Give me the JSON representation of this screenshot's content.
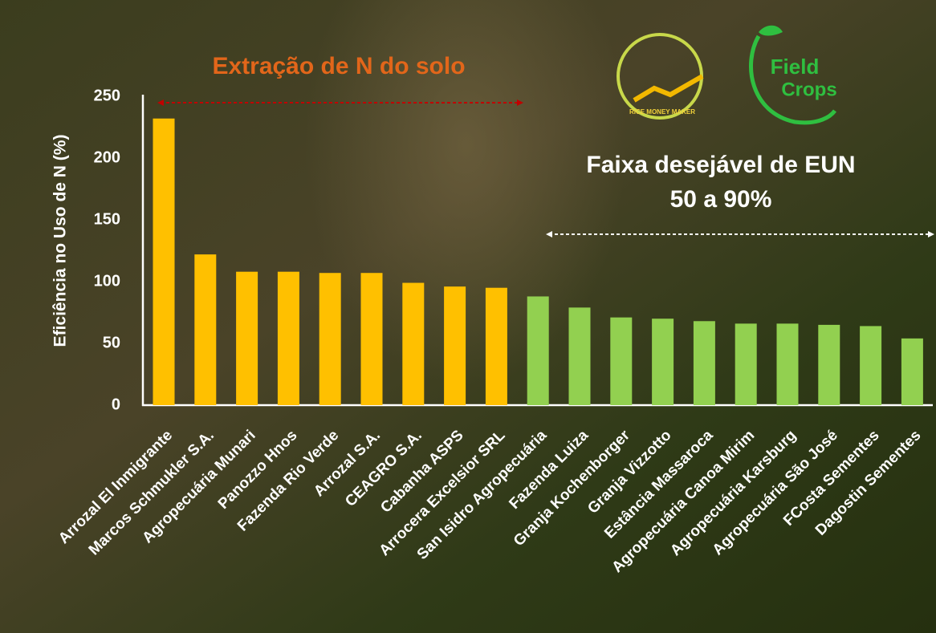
{
  "chart_data": {
    "type": "bar",
    "y_label": "Eficiência no Uso de N (%)",
    "annotations": [
      "Extração de N do solo",
      "Faixa desejável de EUN",
      "50 a 90%"
    ],
    "categories": [
      "Arrozal El Inmigrante",
      "Marcos Schmukler S.A.",
      "Agropecuária Munari",
      "Panozzo Hnos",
      "Fazenda Rio Verde",
      "Arrozal S.A.",
      "CEAGRO S.A.",
      "Cabanha ASPS",
      "Arrocera Excelsior SRL",
      "San Isidro Agropecuária",
      "Fazenda Luiza",
      "Granja Kochenborger",
      "Granja Vizzotto",
      "Estância Massaroca",
      "Agropecuária Canoa Mirim",
      "Agropecuária Karsburg",
      "Agropecuária São José",
      "FCosta Sementes",
      "Dagostin Sementes"
    ],
    "values": [
      232,
      122,
      108,
      108,
      107,
      107,
      99,
      96,
      95,
      88,
      79,
      71,
      70,
      68,
      66,
      66,
      65,
      64,
      54
    ],
    "colors": [
      "#ffc000",
      "#ffc000",
      "#ffc000",
      "#ffc000",
      "#ffc000",
      "#ffc000",
      "#ffc000",
      "#ffc000",
      "#ffc000",
      "#92d050",
      "#92d050",
      "#92d050",
      "#92d050",
      "#92d050",
      "#92d050",
      "#92d050",
      "#92d050",
      "#92d050",
      "#92d050"
    ],
    "ylim": [
      0,
      250
    ],
    "yticks": [
      0,
      50,
      100,
      150,
      200,
      250
    ],
    "grid": false
  },
  "logos": [
    "RICE MONEY MAKER",
    "Field",
    "Crops"
  ]
}
